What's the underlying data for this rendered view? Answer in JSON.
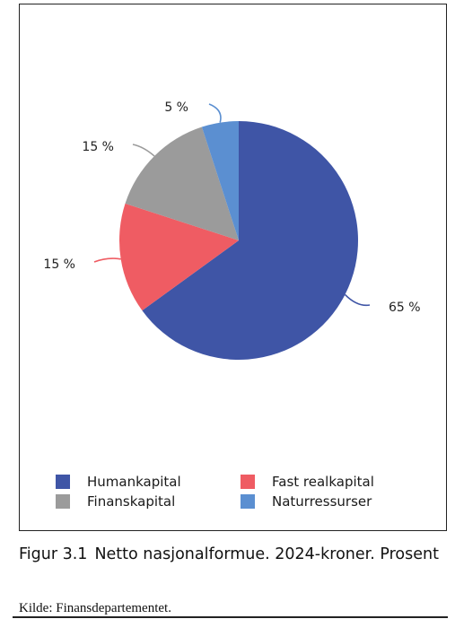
{
  "chart_data": {
    "type": "pie",
    "title": "",
    "slices": [
      {
        "label": "Humankapital",
        "value": 65,
        "value_label": "65 %",
        "color": "#3f55a6"
      },
      {
        "label": "Fast realkapital",
        "value": 15,
        "value_label": "15 %",
        "color": "#ef5c63"
      },
      {
        "label": "Finanskapital",
        "value": 15,
        "value_label": "15 %",
        "color": "#9b9b9b"
      },
      {
        "label": "Naturressurser",
        "value": 5,
        "value_label": "5 %",
        "color": "#5b8fd1"
      }
    ],
    "legend_position": "bottom"
  },
  "legend": [
    {
      "label": "Humankapital",
      "color": "#3f55a6"
    },
    {
      "label": "Fast realkapital",
      "color": "#ef5c63"
    },
    {
      "label": "Finanskapital",
      "color": "#9b9b9b"
    },
    {
      "label": "Naturressurser",
      "color": "#5b8fd1"
    }
  ],
  "caption": {
    "figure_number": "Figur 3.1",
    "text": "Netto nasjonalformue. 2024-kroner. Prosent"
  },
  "source": "Kilde: Finansdepartementet."
}
